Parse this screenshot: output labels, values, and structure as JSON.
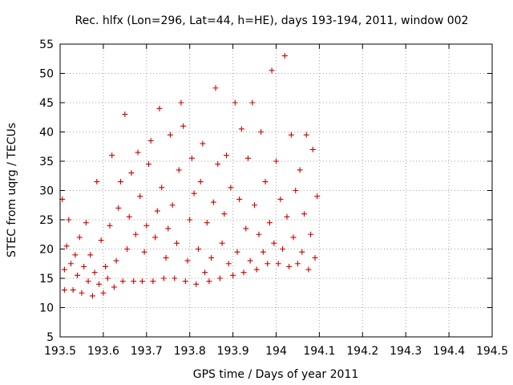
{
  "chart_data": {
    "type": "scatter",
    "title": "Rec. hlfx (Lon=296, Lat=44, h=HE), days 193-194, 2011, window 002",
    "xlabel": "GPS time / Days of year 2011",
    "ylabel": "STEC from uqrg / TECUs",
    "xlim": [
      193.5,
      194.5
    ],
    "ylim": [
      5,
      55
    ],
    "x_ticks": [
      193.5,
      193.6,
      193.7,
      193.8,
      193.9,
      194,
      194.1,
      194.2,
      194.3,
      194.4,
      194.5
    ],
    "x_tick_labels": [
      "193.5",
      "193.6",
      "193.7",
      "193.8",
      "193.9",
      "194",
      "194.1",
      "194.2",
      "194.3",
      "194.4",
      "194.5"
    ],
    "y_ticks": [
      5,
      10,
      15,
      20,
      25,
      30,
      35,
      40,
      45,
      50,
      55
    ],
    "y_tick_labels": [
      "5",
      "10",
      "15",
      "20",
      "25",
      "30",
      "35",
      "40",
      "45",
      "50",
      "55"
    ],
    "grid": true,
    "marker": "+",
    "color": "#cc0000",
    "series": [
      {
        "points": [
          [
            193.505,
            28.5
          ],
          [
            193.51,
            13.0
          ],
          [
            193.51,
            16.5
          ],
          [
            193.515,
            20.5
          ],
          [
            193.52,
            25.0
          ],
          [
            193.525,
            17.5
          ],
          [
            193.53,
            13.0
          ],
          [
            193.535,
            19.0
          ],
          [
            193.54,
            15.5
          ],
          [
            193.545,
            22.0
          ],
          [
            193.55,
            12.5
          ],
          [
            193.555,
            17.0
          ],
          [
            193.56,
            24.5
          ],
          [
            193.565,
            14.5
          ],
          [
            193.57,
            19.0
          ],
          [
            193.575,
            12.0
          ],
          [
            193.58,
            16.0
          ],
          [
            193.585,
            31.5
          ],
          [
            193.59,
            14.0
          ],
          [
            193.595,
            21.5
          ],
          [
            193.6,
            12.5
          ],
          [
            193.605,
            17.0
          ],
          [
            193.61,
            15.0
          ],
          [
            193.615,
            24.0
          ],
          [
            193.62,
            36.0
          ],
          [
            193.625,
            13.5
          ],
          [
            193.63,
            18.0
          ],
          [
            193.635,
            27.0
          ],
          [
            193.64,
            31.5
          ],
          [
            193.645,
            14.5
          ],
          [
            193.65,
            43.0
          ],
          [
            193.655,
            20.0
          ],
          [
            193.66,
            25.5
          ],
          [
            193.665,
            33.0
          ],
          [
            193.67,
            14.5
          ],
          [
            193.675,
            22.5
          ],
          [
            193.68,
            36.5
          ],
          [
            193.685,
            29.0
          ],
          [
            193.69,
            14.5
          ],
          [
            193.695,
            19.5
          ],
          [
            193.7,
            24.0
          ],
          [
            193.705,
            34.5
          ],
          [
            193.71,
            38.5
          ],
          [
            193.715,
            14.5
          ],
          [
            193.72,
            22.0
          ],
          [
            193.725,
            26.5
          ],
          [
            193.73,
            44.0
          ],
          [
            193.735,
            30.5
          ],
          [
            193.74,
            15.0
          ],
          [
            193.745,
            18.5
          ],
          [
            193.75,
            23.5
          ],
          [
            193.755,
            39.5
          ],
          [
            193.76,
            27.5
          ],
          [
            193.765,
            15.0
          ],
          [
            193.77,
            21.0
          ],
          [
            193.775,
            33.5
          ],
          [
            193.78,
            45.0
          ],
          [
            193.785,
            41.0
          ],
          [
            193.79,
            14.5
          ],
          [
            193.795,
            18.0
          ],
          [
            193.8,
            25.0
          ],
          [
            193.805,
            35.5
          ],
          [
            193.81,
            29.5
          ],
          [
            193.815,
            14.0
          ],
          [
            193.82,
            20.0
          ],
          [
            193.825,
            31.5
          ],
          [
            193.83,
            38.0
          ],
          [
            193.835,
            16.0
          ],
          [
            193.84,
            24.5
          ],
          [
            193.845,
            14.5
          ],
          [
            193.85,
            18.5
          ],
          [
            193.855,
            28.0
          ],
          [
            193.86,
            47.5
          ],
          [
            193.865,
            34.5
          ],
          [
            193.87,
            15.0
          ],
          [
            193.875,
            21.0
          ],
          [
            193.88,
            26.0
          ],
          [
            193.885,
            36.0
          ],
          [
            193.89,
            17.5
          ],
          [
            193.895,
            30.5
          ],
          [
            193.9,
            15.5
          ],
          [
            193.905,
            45.0
          ],
          [
            193.91,
            19.5
          ],
          [
            193.915,
            28.5
          ],
          [
            193.92,
            40.5
          ],
          [
            193.925,
            16.0
          ],
          [
            193.93,
            23.5
          ],
          [
            193.935,
            35.5
          ],
          [
            193.94,
            18.0
          ],
          [
            193.945,
            45.0
          ],
          [
            193.95,
            27.5
          ],
          [
            193.955,
            16.5
          ],
          [
            193.96,
            22.5
          ],
          [
            193.965,
            40.0
          ],
          [
            193.97,
            19.5
          ],
          [
            193.975,
            31.5
          ],
          [
            193.98,
            17.5
          ],
          [
            193.985,
            24.5
          ],
          [
            193.99,
            50.5
          ],
          [
            193.995,
            21.0
          ],
          [
            194.0,
            35.0
          ],
          [
            194.005,
            17.5
          ],
          [
            194.01,
            28.5
          ],
          [
            194.015,
            20.0
          ],
          [
            194.02,
            53.0
          ],
          [
            194.025,
            25.5
          ],
          [
            194.03,
            17.0
          ],
          [
            194.035,
            39.5
          ],
          [
            194.04,
            22.0
          ],
          [
            194.045,
            30.0
          ],
          [
            194.05,
            17.5
          ],
          [
            194.055,
            33.5
          ],
          [
            194.06,
            19.5
          ],
          [
            194.065,
            26.0
          ],
          [
            194.07,
            39.5
          ],
          [
            194.075,
            16.5
          ],
          [
            194.08,
            22.5
          ],
          [
            194.085,
            37.0
          ],
          [
            194.09,
            18.5
          ],
          [
            194.095,
            29.0
          ]
        ]
      }
    ]
  }
}
